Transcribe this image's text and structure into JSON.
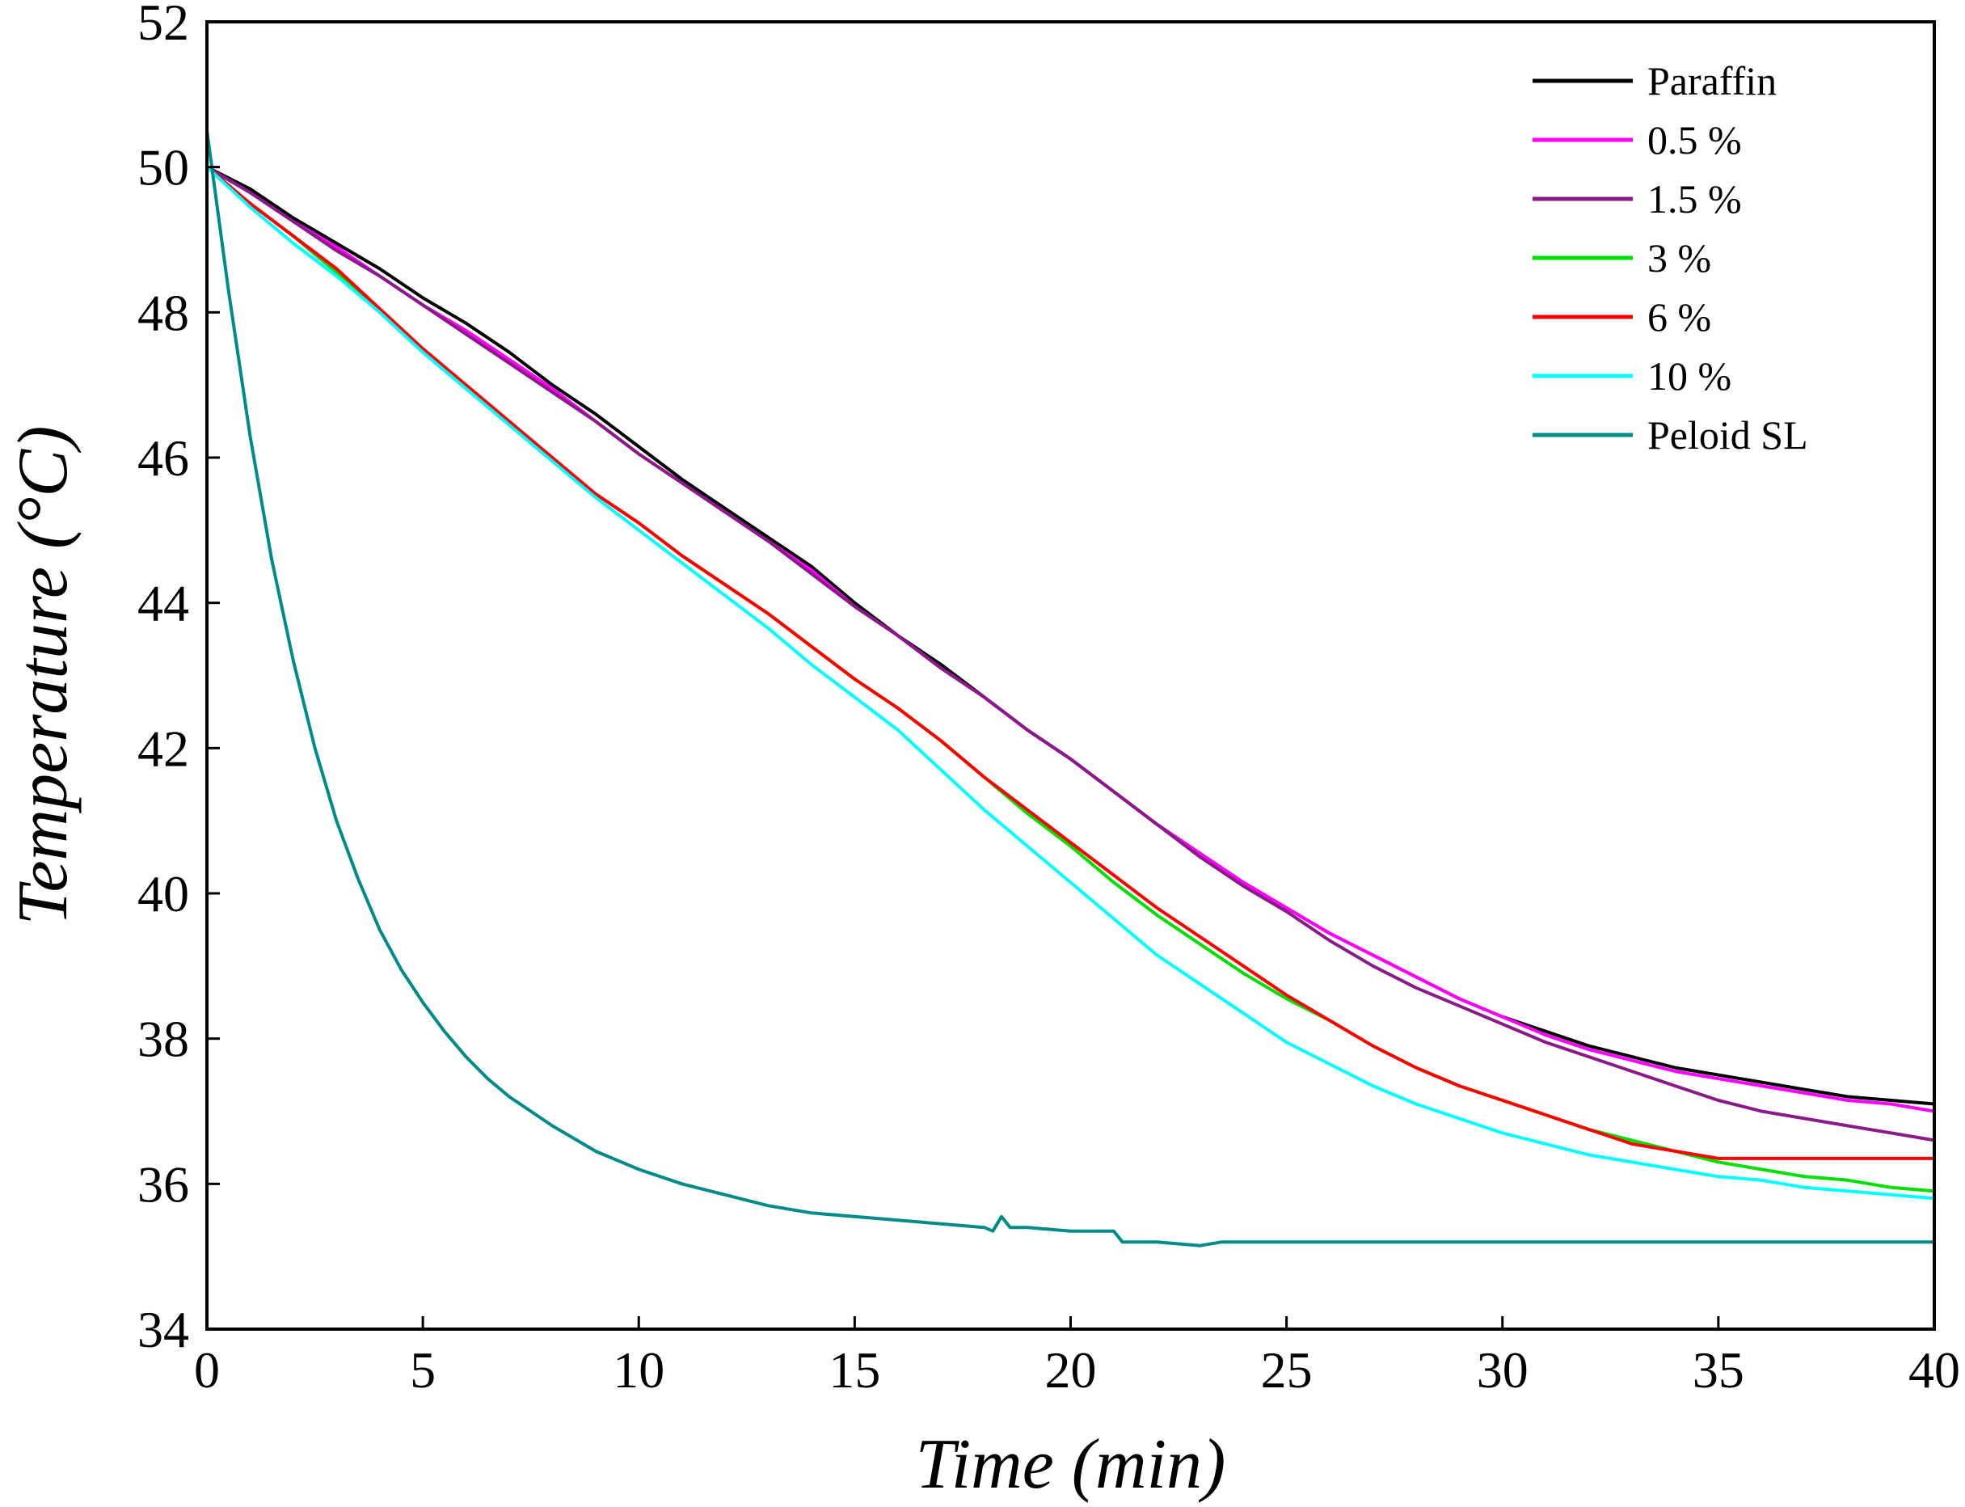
{
  "chart_data": {
    "type": "line",
    "title": "",
    "xlabel": "Time (min)",
    "ylabel": "Temperature (°C)",
    "xlim": [
      0,
      40
    ],
    "ylim": [
      34,
      52
    ],
    "xticks": [
      0,
      5,
      10,
      15,
      20,
      25,
      30,
      35,
      40
    ],
    "yticks": [
      34,
      36,
      38,
      40,
      42,
      44,
      46,
      48,
      50,
      52
    ],
    "grid": false,
    "legend_position": "top-right",
    "series": [
      {
        "name": "Paraffin",
        "color": "#000000",
        "x": [
          0,
          1,
          2,
          3,
          4,
          5,
          6,
          7,
          8,
          9,
          10,
          11,
          12,
          13,
          14,
          15,
          16,
          17,
          18,
          19,
          20,
          21,
          22,
          23,
          24,
          25,
          26,
          27,
          28,
          29,
          30,
          31,
          32,
          33,
          34,
          35,
          36,
          37,
          38,
          39,
          40
        ],
        "y": [
          50.0,
          49.7,
          49.3,
          48.95,
          48.6,
          48.2,
          47.85,
          47.45,
          47.0,
          46.6,
          46.15,
          45.7,
          45.3,
          44.9,
          44.5,
          44.0,
          43.55,
          43.15,
          42.7,
          42.25,
          41.85,
          41.4,
          40.95,
          40.55,
          40.15,
          39.8,
          39.45,
          39.15,
          38.85,
          38.55,
          38.3,
          38.1,
          37.9,
          37.75,
          37.6,
          37.5,
          37.4,
          37.3,
          37.2,
          37.15,
          37.1
        ]
      },
      {
        "name": "0.5 %",
        "color": "#ff00ff",
        "x": [
          0,
          1,
          2,
          3,
          4,
          5,
          6,
          7,
          8,
          9,
          10,
          11,
          12,
          13,
          14,
          15,
          16,
          17,
          18,
          19,
          20,
          21,
          22,
          23,
          24,
          25,
          26,
          27,
          28,
          29,
          30,
          31,
          32,
          33,
          34,
          35,
          36,
          37,
          38,
          39,
          40
        ],
        "y": [
          50.0,
          49.65,
          49.25,
          48.9,
          48.5,
          48.1,
          47.75,
          47.35,
          46.95,
          46.5,
          46.05,
          45.65,
          45.25,
          44.85,
          44.45,
          43.95,
          43.55,
          43.1,
          42.7,
          42.25,
          41.85,
          41.4,
          40.95,
          40.55,
          40.15,
          39.8,
          39.45,
          39.15,
          38.85,
          38.55,
          38.3,
          38.05,
          37.85,
          37.7,
          37.55,
          37.45,
          37.35,
          37.25,
          37.15,
          37.1,
          37.0
        ]
      },
      {
        "name": "1.5 %",
        "color": "#8b1a89",
        "x": [
          0,
          1,
          2,
          3,
          4,
          5,
          6,
          7,
          8,
          9,
          10,
          11,
          12,
          13,
          14,
          15,
          16,
          17,
          18,
          19,
          20,
          21,
          22,
          23,
          24,
          25,
          26,
          27,
          28,
          29,
          30,
          31,
          32,
          33,
          34,
          35,
          36,
          37,
          38,
          39,
          40
        ],
        "y": [
          50.0,
          49.65,
          49.25,
          48.85,
          48.5,
          48.1,
          47.7,
          47.3,
          46.9,
          46.5,
          46.05,
          45.65,
          45.25,
          44.85,
          44.4,
          43.95,
          43.55,
          43.1,
          42.7,
          42.25,
          41.85,
          41.4,
          40.95,
          40.5,
          40.1,
          39.75,
          39.35,
          39.0,
          38.7,
          38.45,
          38.2,
          37.95,
          37.75,
          37.55,
          37.35,
          37.15,
          37.0,
          36.9,
          36.8,
          36.7,
          36.6
        ]
      },
      {
        "name": "3 %",
        "color": "#00e000",
        "x": [
          0,
          1,
          2,
          3,
          4,
          5,
          6,
          7,
          8,
          9,
          10,
          11,
          12,
          13,
          14,
          15,
          16,
          17,
          18,
          19,
          20,
          21,
          22,
          23,
          24,
          25,
          26,
          27,
          28,
          29,
          30,
          31,
          32,
          33,
          34,
          35,
          36,
          37,
          38,
          39,
          40
        ],
        "y": [
          50.0,
          49.5,
          49.05,
          48.55,
          48.0,
          47.45,
          46.95,
          46.45,
          45.95,
          45.5,
          45.1,
          44.65,
          44.25,
          43.85,
          43.4,
          42.95,
          42.55,
          42.1,
          41.6,
          41.1,
          40.65,
          40.15,
          39.7,
          39.3,
          38.9,
          38.55,
          38.25,
          37.9,
          37.6,
          37.35,
          37.15,
          36.95,
          36.75,
          36.6,
          36.45,
          36.3,
          36.2,
          36.1,
          36.05,
          35.95,
          35.9
        ]
      },
      {
        "name": "6 %",
        "color": "#ff0000",
        "x": [
          0,
          1,
          2,
          3,
          4,
          5,
          6,
          7,
          8,
          9,
          10,
          11,
          12,
          13,
          14,
          15,
          16,
          17,
          18,
          19,
          20,
          21,
          22,
          23,
          24,
          25,
          26,
          27,
          28,
          29,
          30,
          31,
          32,
          33,
          34,
          35,
          36,
          37,
          38,
          39,
          40
        ],
        "y": [
          50.0,
          49.5,
          49.05,
          48.6,
          48.05,
          47.5,
          47.0,
          46.5,
          46.0,
          45.5,
          45.1,
          44.65,
          44.25,
          43.85,
          43.4,
          42.95,
          42.55,
          42.1,
          41.6,
          41.15,
          40.7,
          40.25,
          39.8,
          39.4,
          39.0,
          38.6,
          38.25,
          37.9,
          37.6,
          37.35,
          37.15,
          36.95,
          36.75,
          36.55,
          36.45,
          36.35,
          36.35,
          36.35,
          36.35,
          36.35,
          36.35
        ]
      },
      {
        "name": "10 %",
        "color": "#00ffff",
        "x": [
          0,
          1,
          2,
          3,
          4,
          5,
          6,
          7,
          8,
          9,
          10,
          11,
          12,
          13,
          14,
          15,
          16,
          17,
          18,
          19,
          20,
          21,
          22,
          23,
          24,
          25,
          26,
          27,
          28,
          29,
          30,
          31,
          32,
          33,
          34,
          35,
          36,
          37,
          38,
          39,
          40
        ],
        "y": [
          50.0,
          49.45,
          48.95,
          48.5,
          48.0,
          47.45,
          46.95,
          46.45,
          45.95,
          45.45,
          45.0,
          44.55,
          44.1,
          43.65,
          43.15,
          42.7,
          42.25,
          41.7,
          41.15,
          40.65,
          40.15,
          39.65,
          39.15,
          38.75,
          38.35,
          37.95,
          37.65,
          37.35,
          37.1,
          36.9,
          36.7,
          36.55,
          36.4,
          36.3,
          36.2,
          36.1,
          36.05,
          35.95,
          35.9,
          35.85,
          35.8
        ]
      },
      {
        "name": "Peloid SL",
        "color": "#008b8b",
        "x": [
          0,
          0.5,
          1,
          1.5,
          2,
          2.5,
          3,
          3.5,
          4,
          4.5,
          5,
          5.5,
          6,
          6.5,
          7,
          7.5,
          8,
          9,
          10,
          11,
          12,
          13,
          14,
          15,
          16,
          17,
          18,
          18.2,
          18.4,
          18.6,
          19,
          20,
          21,
          21.2,
          22,
          23,
          23.5,
          25,
          30,
          35,
          40
        ],
        "y": [
          50.5,
          48.3,
          46.3,
          44.6,
          43.2,
          42.0,
          41.0,
          40.2,
          39.5,
          38.95,
          38.5,
          38.1,
          37.75,
          37.45,
          37.2,
          37.0,
          36.8,
          36.45,
          36.2,
          36.0,
          35.85,
          35.7,
          35.6,
          35.55,
          35.5,
          35.45,
          35.4,
          35.35,
          35.55,
          35.4,
          35.4,
          35.35,
          35.35,
          35.2,
          35.2,
          35.15,
          35.2,
          35.2,
          35.2,
          35.2,
          35.2
        ]
      }
    ]
  }
}
